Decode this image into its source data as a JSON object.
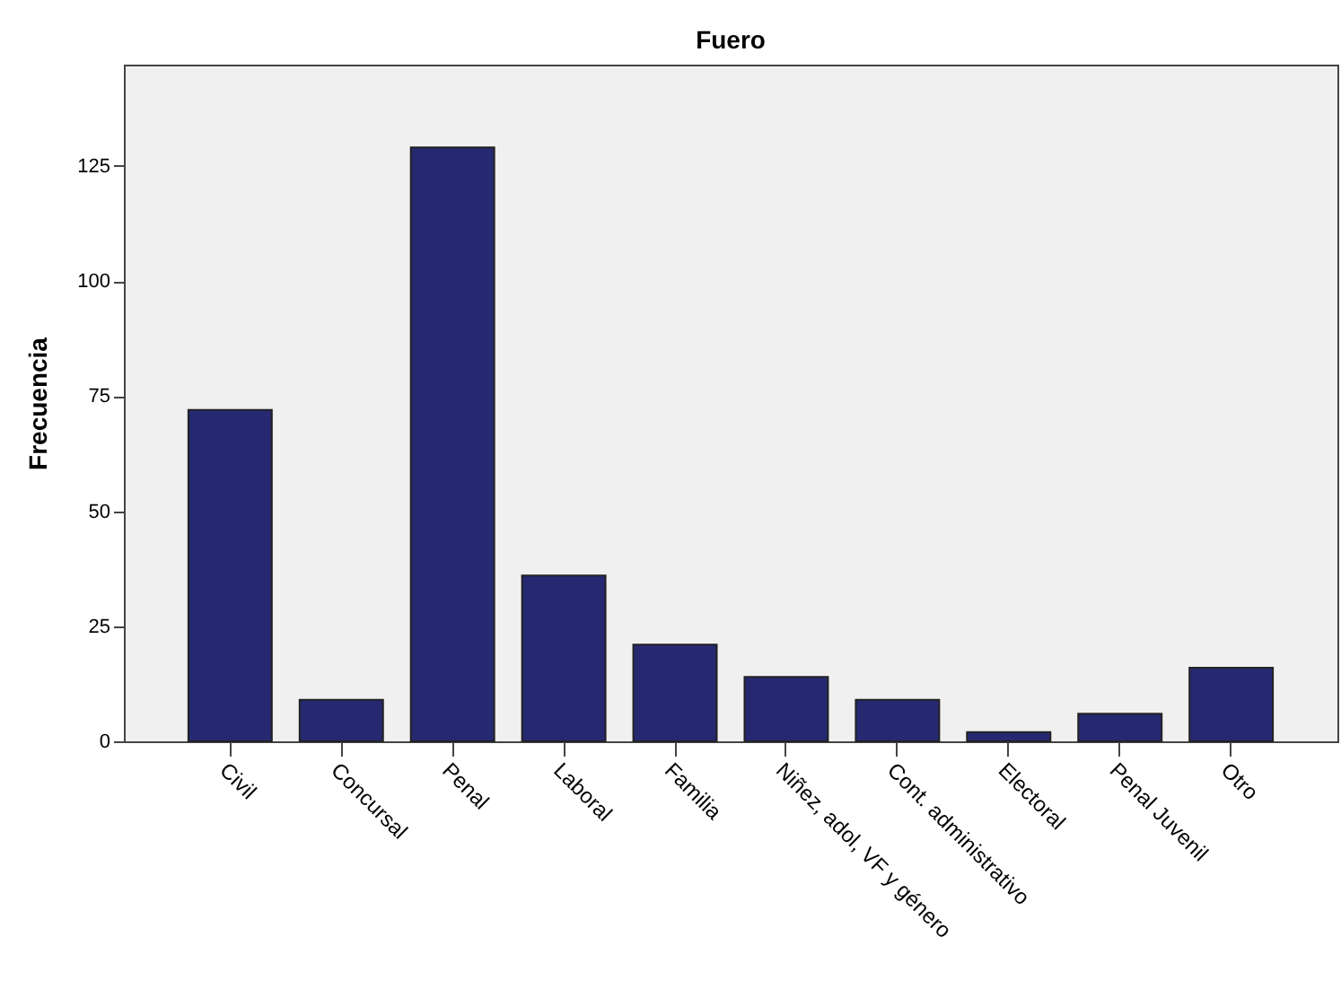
{
  "chart_data": {
    "type": "bar",
    "title": "Fuero",
    "ylabel": "Frecuencia",
    "categories": [
      "Civil",
      "Concursal",
      "Penal",
      "Laboral",
      "Familia",
      "Niñez, adol, VF y género",
      "Cont. administrativo",
      "Electoral",
      "Penal Juvenil",
      "Otro"
    ],
    "values": [
      72,
      9,
      129,
      36,
      21,
      14,
      9,
      2,
      6,
      16
    ],
    "color": "#262971",
    "ylim": [
      0,
      147
    ],
    "yticks": [
      0,
      25,
      50,
      75,
      100,
      125
    ],
    "grid": false
  }
}
